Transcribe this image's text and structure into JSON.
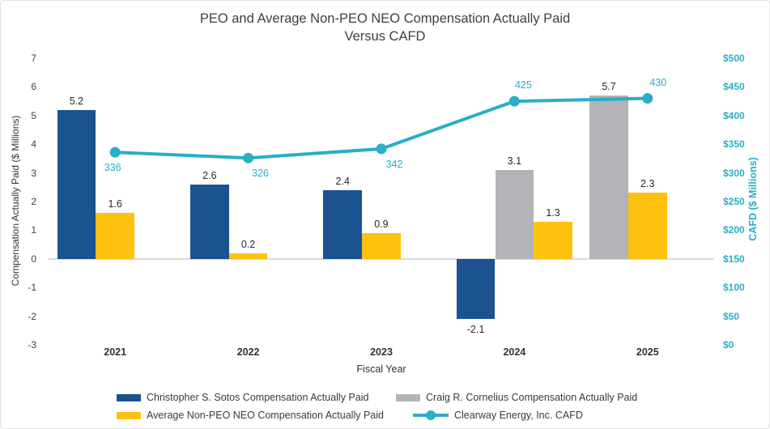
{
  "title": {
    "line1": "PEO and Average Non-PEO NEO Compensation Actually Paid",
    "line2": "Versus CAFD"
  },
  "axes": {
    "left": {
      "title": "Compensation Actually Paid ($ Millions)",
      "ticks": [
        7,
        6,
        5,
        4,
        3,
        2,
        1,
        0,
        -1,
        -2,
        -3
      ]
    },
    "right": {
      "title": "CAFD ($ Millions)",
      "ticks": [
        {
          "label": "$500",
          "value": 500
        },
        {
          "label": "$450",
          "value": 450
        },
        {
          "label": "$400",
          "value": 400
        },
        {
          "label": "$350",
          "value": 350
        },
        {
          "label": "$300",
          "value": 300
        },
        {
          "label": "$250",
          "value": 250
        },
        {
          "label": "$200",
          "value": 200
        },
        {
          "label": "$150",
          "value": 150
        },
        {
          "label": "$100",
          "value": 100
        },
        {
          "label": "$50",
          "value": 50
        },
        {
          "label": "$0",
          "value": 0
        }
      ]
    },
    "x": {
      "title": "Fiscal Year"
    }
  },
  "colors": {
    "sotos_blue": "#1B5290",
    "cornelius_gray": "#B2B4B7",
    "average_yellow": "#FDC110",
    "cafd_teal": "#29AEC6",
    "zero_line": "#D9D9D9",
    "text_dark": "#333333"
  },
  "chart_data": {
    "type": "combo-bar-line",
    "categories": [
      "2021",
      "2022",
      "2023",
      "2024",
      "2025"
    ],
    "ylim_left": [
      -3,
      7
    ],
    "ylim_right": [
      0,
      500
    ],
    "grid": "zero-line-only",
    "legend_position": "bottom",
    "series": [
      {
        "name": "Christopher S. Sotos Compensation Actually Paid",
        "type": "bar",
        "color": "#1B5290",
        "values": [
          5.2,
          2.6,
          2.4,
          -2.1,
          null
        ]
      },
      {
        "name": "Craig R. Cornelius Compensation Actually Paid",
        "type": "bar",
        "color": "#B2B4B7",
        "values": [
          null,
          null,
          null,
          3.1,
          5.7
        ]
      },
      {
        "name": "Average Non-PEO NEO Compensation Actually Paid",
        "type": "bar",
        "color": "#FDC110",
        "values": [
          1.6,
          0.2,
          0.9,
          1.3,
          2.3
        ]
      },
      {
        "name": "Clearway Energy, Inc. CAFD",
        "type": "line",
        "axis": "right",
        "color": "#29AEC6",
        "values": [
          336,
          326,
          342,
          425,
          430
        ],
        "label_positions": [
          "below",
          "below",
          "below",
          "above",
          "above"
        ]
      }
    ]
  },
  "legend": {
    "items": [
      {
        "label": "Christopher S. Sotos Compensation Actually Paid",
        "series": 0
      },
      {
        "label": "Craig R. Cornelius Compensation Actually Paid",
        "series": 1
      },
      {
        "label": "Average Non-PEO NEO Compensation Actually Paid",
        "series": 2
      },
      {
        "label": "Clearway Energy, Inc. CAFD",
        "series": 3
      }
    ]
  }
}
